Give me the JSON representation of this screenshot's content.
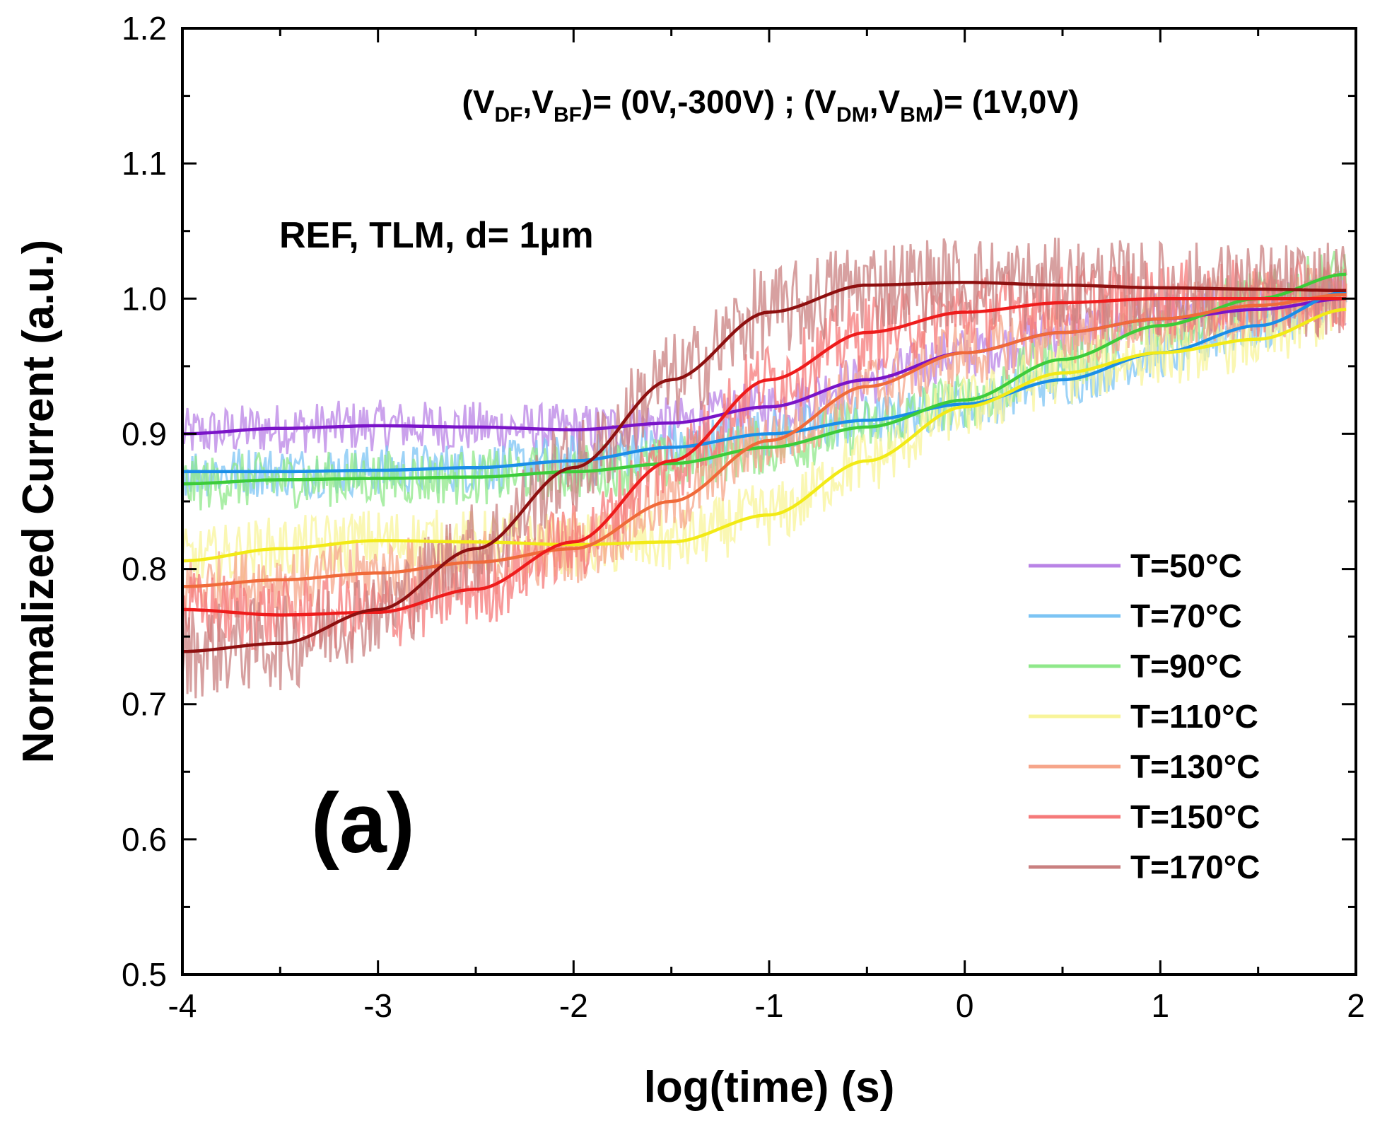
{
  "chart_data": {
    "type": "line",
    "xlabel": "log(time) (s)",
    "ylabel": "Normalized Current (a.u.)",
    "xlim": [
      -4,
      2
    ],
    "ylim": [
      0.5,
      1.2
    ],
    "x_ticks": [
      "-4",
      "-3",
      "-2",
      "-1",
      "0",
      "1",
      "2"
    ],
    "y_ticks": [
      "0.5",
      "0.6",
      "0.7",
      "0.8",
      "0.9",
      "1.0",
      "1.1",
      "1.2"
    ],
    "annotations": {
      "conditions": {
        "p1": "(V",
        "s1": "DF",
        "p2": ",V",
        "s2": "BF",
        "p3": ")= (0V,-300V) ; (V",
        "s3": "DM",
        "p4": ",V",
        "s4": "BM",
        "p5": ")= (1V,0V)"
      },
      "sample": "REF, TLM, d= 1µm",
      "panel": "(a)"
    },
    "legend_position": "lower-right",
    "grid": false,
    "series": [
      {
        "name": "T=50°C",
        "raw_color": "#b983e6",
        "fit_color": "#7a14c8",
        "noise": 0.012,
        "x": [
          -4,
          -3.5,
          -3,
          -2.5,
          -2,
          -1.5,
          -1,
          -0.5,
          0,
          0.5,
          1,
          1.5,
          1.95
        ],
        "y": [
          0.9,
          0.904,
          0.906,
          0.905,
          0.903,
          0.908,
          0.92,
          0.94,
          0.96,
          0.975,
          0.985,
          0.992,
          1.0
        ]
      },
      {
        "name": "T=70°C",
        "raw_color": "#7cc4f4",
        "fit_color": "#1a8ee8",
        "noise": 0.012,
        "x": [
          -4,
          -3.5,
          -3,
          -2.5,
          -2,
          -1.5,
          -1,
          -0.5,
          0,
          0.5,
          1,
          1.5,
          1.95
        ],
        "y": [
          0.872,
          0.872,
          0.873,
          0.875,
          0.88,
          0.89,
          0.9,
          0.91,
          0.922,
          0.94,
          0.96,
          0.98,
          1.005
        ]
      },
      {
        "name": "T=90°C",
        "raw_color": "#8fe88a",
        "fit_color": "#3ccc3a",
        "noise": 0.013,
        "x": [
          -4,
          -3.5,
          -3,
          -2.5,
          -2,
          -1.5,
          -1,
          -0.5,
          0,
          0.5,
          1,
          1.5,
          1.95
        ],
        "y": [
          0.863,
          0.866,
          0.867,
          0.868,
          0.872,
          0.878,
          0.89,
          0.905,
          0.925,
          0.955,
          0.98,
          1.0,
          1.018
        ]
      },
      {
        "name": "T=110°C",
        "raw_color": "#f8f49a",
        "fit_color": "#f2ea16",
        "noise": 0.015,
        "x": [
          -4,
          -3.5,
          -3,
          -2.5,
          -2,
          -1.5,
          -1,
          -0.5,
          0,
          0.5,
          1,
          1.5,
          1.95
        ],
        "y": [
          0.806,
          0.815,
          0.821,
          0.82,
          0.818,
          0.82,
          0.84,
          0.88,
          0.92,
          0.945,
          0.96,
          0.97,
          0.992
        ]
      },
      {
        "name": "T=130°C",
        "raw_color": "#f6a58a",
        "fit_color": "#f06a3a",
        "noise": 0.016,
        "x": [
          -4,
          -3.5,
          -3,
          -2.5,
          -2,
          -1.5,
          -1,
          -0.5,
          0,
          0.5,
          1,
          1.5,
          1.95
        ],
        "y": [
          0.787,
          0.792,
          0.797,
          0.805,
          0.815,
          0.85,
          0.895,
          0.935,
          0.96,
          0.975,
          0.985,
          0.995,
          1.003
        ]
      },
      {
        "name": "T=150°C",
        "raw_color": "#f57a7a",
        "fit_color": "#ee1c1c",
        "noise": 0.018,
        "x": [
          -4,
          -3.5,
          -3,
          -2.5,
          -2,
          -1.5,
          -1,
          -0.5,
          0,
          0.5,
          1,
          1.5,
          1.95
        ],
        "y": [
          0.77,
          0.766,
          0.768,
          0.785,
          0.82,
          0.88,
          0.94,
          0.975,
          0.99,
          0.997,
          1.0,
          1.0,
          1.0
        ]
      },
      {
        "name": "T=170°C",
        "raw_color": "#c98080",
        "fit_color": "#8e1010",
        "noise": 0.022,
        "x": [
          -4,
          -3.5,
          -3,
          -2.5,
          -2,
          -1.5,
          -1,
          -0.5,
          0,
          0.5,
          1,
          1.5,
          1.95
        ],
        "y": [
          0.739,
          0.745,
          0.77,
          0.815,
          0.875,
          0.94,
          0.99,
          1.01,
          1.012,
          1.01,
          1.008,
          1.007,
          1.006
        ]
      }
    ]
  }
}
